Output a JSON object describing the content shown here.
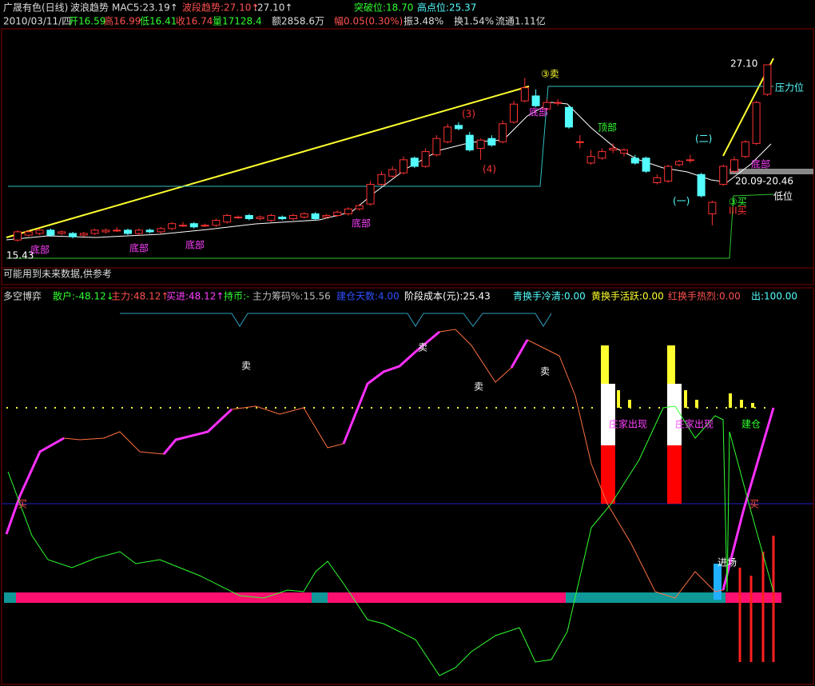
{
  "header": {
    "line1": [
      "广晟有色(日线)",
      "波浪趋势",
      "MAC5:23.19↑",
      "波段趋势:27.10↑",
      ":27.10↑",
      "突破位:18.70",
      "高点位:25.37"
    ],
    "line2": [
      "2010/03/11/四",
      "开16.59",
      "高16.99",
      "低16.41",
      "收16.74",
      "量17128.4",
      "额2858.6万",
      "幅0.05(0.30%)",
      "振3.48%",
      "换1.54%",
      "流通1.11亿"
    ]
  },
  "chart_data": {
    "type": "candlestick",
    "ylim": [
      14.7,
      29.3
    ],
    "up_color": "#ff3232",
    "down_color": "#54ffff",
    "ohlc": [
      [
        16.4,
        17.0,
        16.3,
        16.9
      ],
      [
        16.7,
        17.0,
        16.6,
        16.9
      ],
      [
        16.8,
        17.1,
        16.7,
        17.0
      ],
      [
        17.0,
        17.1,
        16.6,
        16.7
      ],
      [
        16.8,
        17.0,
        16.7,
        16.9
      ],
      [
        16.8,
        16.9,
        16.5,
        16.6
      ],
      [
        16.7,
        16.9,
        16.6,
        16.8
      ],
      [
        16.8,
        17.1,
        16.7,
        17.0
      ],
      [
        16.9,
        17.1,
        16.8,
        17.0
      ],
      [
        17.0,
        17.2,
        16.9,
        17.0
      ],
      [
        17.0,
        17.1,
        16.7,
        16.8
      ],
      [
        16.8,
        17.1,
        16.7,
        17.0
      ],
      [
        17.0,
        17.1,
        16.8,
        16.9
      ],
      [
        16.9,
        17.2,
        16.8,
        17.1
      ],
      [
        17.1,
        17.5,
        17.0,
        17.4
      ],
      [
        17.3,
        17.5,
        17.2,
        17.3
      ],
      [
        17.4,
        17.5,
        17.1,
        17.2
      ],
      [
        17.3,
        17.4,
        17.2,
        17.3
      ],
      [
        17.3,
        17.7,
        17.2,
        17.6
      ],
      [
        17.5,
        18.0,
        17.4,
        17.9
      ],
      [
        17.8,
        17.9,
        17.7,
        17.8
      ],
      [
        17.9,
        18.0,
        17.6,
        17.7
      ],
      [
        17.7,
        17.9,
        17.6,
        17.8
      ],
      [
        17.6,
        18.0,
        17.5,
        17.9
      ],
      [
        17.8,
        17.9,
        17.6,
        17.7
      ],
      [
        17.7,
        18.0,
        17.6,
        17.9
      ],
      [
        17.8,
        18.1,
        17.7,
        18.0
      ],
      [
        18.0,
        18.1,
        17.6,
        17.7
      ],
      [
        17.8,
        18.0,
        17.7,
        17.9
      ],
      [
        17.9,
        18.2,
        17.8,
        18.1
      ],
      [
        18.0,
        18.4,
        17.9,
        18.3
      ],
      [
        18.3,
        18.6,
        18.2,
        18.5
      ],
      [
        18.6,
        20.0,
        18.5,
        19.8
      ],
      [
        19.8,
        20.6,
        19.7,
        20.4
      ],
      [
        20.3,
        20.9,
        20.2,
        20.7
      ],
      [
        20.5,
        21.5,
        20.4,
        21.3
      ],
      [
        21.4,
        21.5,
        20.8,
        20.9
      ],
      [
        20.9,
        22.0,
        20.8,
        21.8
      ],
      [
        21.6,
        22.8,
        21.5,
        22.6
      ],
      [
        22.4,
        23.5,
        22.3,
        23.3
      ],
      [
        23.4,
        23.6,
        23.1,
        23.2
      ],
      [
        22.8,
        23.0,
        21.8,
        21.9
      ],
      [
        22.0,
        22.6,
        21.3,
        22.5
      ],
      [
        22.6,
        22.8,
        22.1,
        22.2
      ],
      [
        22.4,
        23.7,
        22.3,
        23.5
      ],
      [
        23.6,
        24.9,
        23.5,
        24.7
      ],
      [
        24.9,
        26.3,
        24.8,
        25.7
      ],
      [
        25.2,
        25.6,
        24.5,
        24.6
      ],
      [
        24.4,
        25.0,
        24.3,
        24.8
      ],
      [
        24.8,
        25.0,
        24.6,
        24.8
      ],
      [
        24.5,
        24.6,
        23.2,
        23.3
      ],
      [
        22.4,
        22.8,
        22.0,
        22.4
      ],
      [
        21.1,
        21.9,
        21.0,
        21.5
      ],
      [
        21.4,
        22.0,
        21.3,
        21.8
      ],
      [
        21.9,
        22.3,
        21.7,
        22.0
      ],
      [
        21.7,
        22.0,
        21.5,
        21.9
      ],
      [
        21.4,
        21.6,
        21.0,
        21.1
      ],
      [
        21.4,
        21.5,
        20.5,
        20.6
      ],
      [
        19.9,
        20.4,
        19.8,
        20.2
      ],
      [
        20.0,
        21.0,
        19.9,
        20.9
      ],
      [
        21.0,
        21.3,
        20.9,
        21.2
      ],
      [
        21.3,
        21.6,
        21.1,
        21.3
      ],
      [
        20.4,
        20.5,
        19.0,
        19.1
      ],
      [
        18.0,
        18.8,
        17.3,
        18.7
      ],
      [
        19.8,
        21.0,
        19.7,
        20.9
      ],
      [
        20.6,
        21.5,
        20.5,
        21.3
      ],
      [
        21.5,
        22.5,
        21.4,
        22.4
      ],
      [
        22.3,
        24.9,
        22.2,
        24.8
      ],
      [
        25.3,
        27.1,
        25.2,
        27.1
      ]
    ],
    "annotations": [
      "27.10",
      "③卖",
      "压力位",
      "(3)",
      "(4)",
      "顶部",
      "(二)",
      "(一)",
      "20.09-20.46",
      "低位",
      "③买",
      "III买",
      "15.43",
      "底部",
      "底部",
      "底部",
      "底部",
      "底部",
      "底部"
    ]
  },
  "note": "可能用到未来数据,供参考",
  "indicator": {
    "header": [
      "多空博弈",
      "散户:-48.12↓",
      "主力:48.12↑",
      "买进:48.12↑",
      "持币:-",
      "主力筹码%:15.56",
      "建仓天数:4.00",
      "阶段成本(元):25.43",
      "青换手冷清:0.00",
      "黄换手活跃:0.00",
      "红换手热烈:0.00",
      "出:100.00"
    ],
    "labels": [
      "卖",
      "卖",
      "卖",
      "卖",
      "庄家出现",
      "庄家出现",
      "建仓",
      "买",
      "买",
      "进场"
    ]
  }
}
